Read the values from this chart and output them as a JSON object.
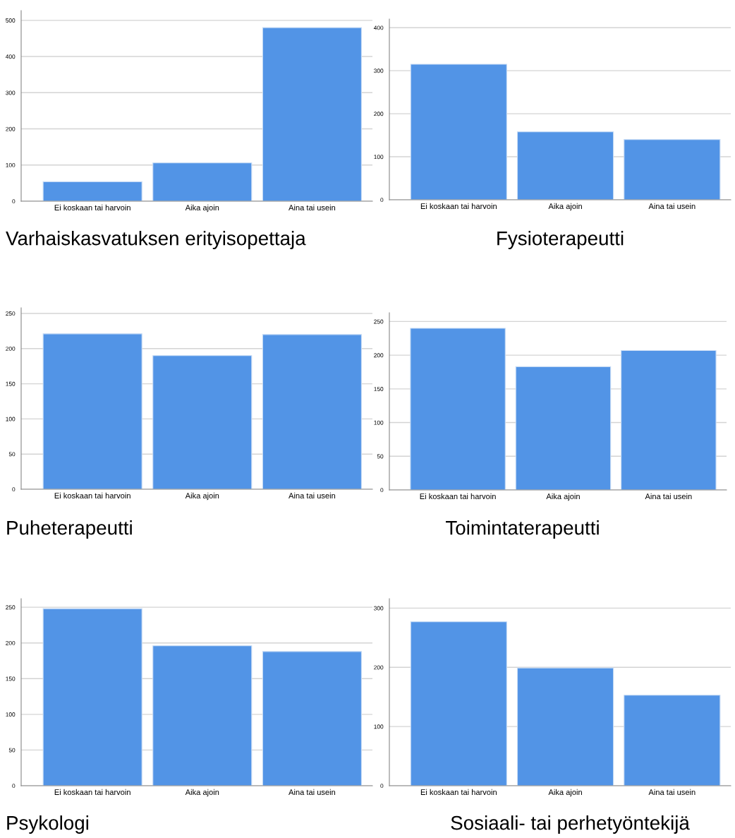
{
  "chart_data": [
    {
      "type": "bar",
      "title": "Varhaiskasvatuksen erityisopettaja",
      "categories": [
        "Ei koskaan tai harvoin",
        "Aika ajoin",
        "Aina tai usein"
      ],
      "values": [
        54,
        106,
        480
      ],
      "color": "#5294e6",
      "ylim": [
        0,
        527
      ],
      "yticks": [
        0,
        100,
        200,
        300,
        400,
        500
      ],
      "grid": "y"
    },
    {
      "type": "bar",
      "title": "Fysioterapeutti",
      "categories": [
        "Ei koskaan tai harvoin",
        "Aika ajoin",
        "Aina tai usein"
      ],
      "values": [
        315,
        158,
        140
      ],
      "color": "#5294e6",
      "ylim": [
        0,
        420
      ],
      "yticks": [
        0,
        100,
        200,
        300,
        400
      ],
      "grid": "y"
    },
    {
      "type": "bar",
      "title": "Puheterapeutti",
      "categories": [
        "Ei koskaan tai harvoin",
        "Aika ajoin",
        "Aina tai usein"
      ],
      "values": [
        221,
        190,
        220
      ],
      "color": "#5294e6",
      "ylim": [
        0,
        258
      ],
      "yticks": [
        0,
        50,
        100,
        150,
        200,
        250
      ],
      "grid": "y"
    },
    {
      "type": "bar",
      "title": "Toimintaterapeutti",
      "categories": [
        "Ei koskaan tai harvoin",
        "Aika ajoin",
        "Aina tai usein"
      ],
      "values": [
        240,
        183,
        207
      ],
      "color": "#5294e6",
      "ylim": [
        0,
        263
      ],
      "yticks": [
        0,
        50,
        100,
        150,
        200,
        250
      ],
      "grid": "y"
    },
    {
      "type": "bar",
      "title": "Psykologi",
      "categories": [
        "Ei koskaan tai harvoin",
        "Aika ajoin",
        "Aina tai usein"
      ],
      "values": [
        248,
        196,
        188
      ],
      "color": "#5294e6",
      "ylim": [
        0,
        262
      ],
      "yticks": [
        0,
        50,
        100,
        150,
        200,
        250
      ],
      "grid": "y"
    },
    {
      "type": "bar",
      "title": "Sosiaali- tai perhetyöntekijä",
      "categories": [
        "Ei koskaan tai harvoin",
        "Aika ajoin",
        "Aina tai usein"
      ],
      "values": [
        277,
        199,
        153
      ],
      "color": "#5294e6",
      "ylim": [
        0,
        316
      ],
      "yticks": [
        0,
        100,
        200,
        300
      ],
      "grid": "y"
    }
  ]
}
